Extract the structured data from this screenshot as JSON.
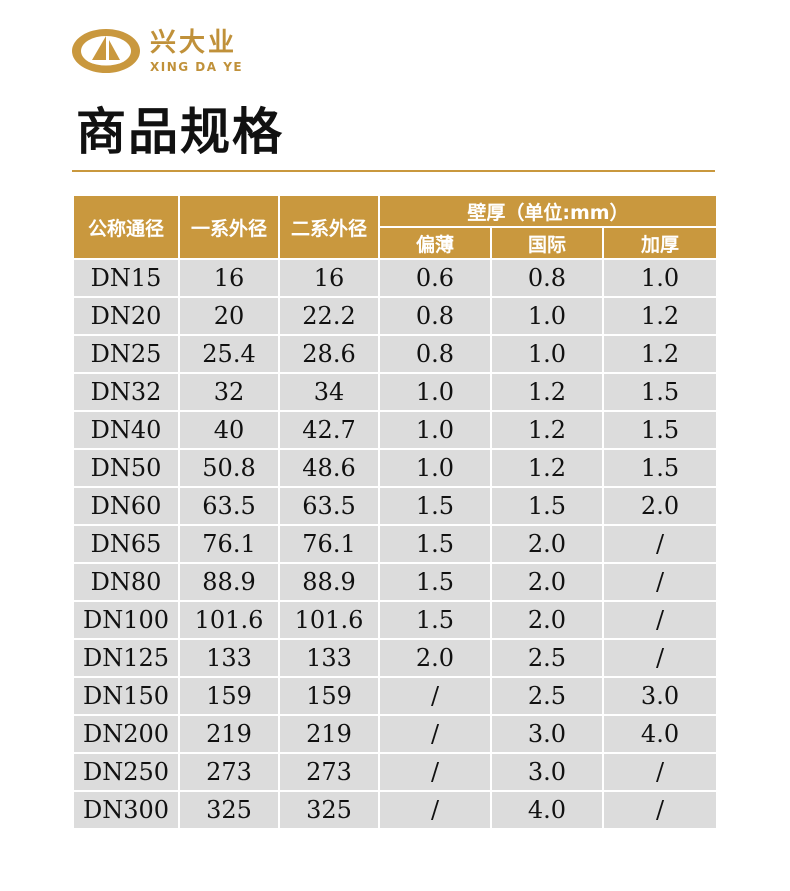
{
  "logo": {
    "name": "兴大业",
    "pinyin": "XING DA YE"
  },
  "title": "商品规格",
  "table": {
    "header": {
      "nominal": "公称通径",
      "series1": "一系外径",
      "series2": "二系外径",
      "thickness": "壁厚（单位:mm）",
      "thin": "偏薄",
      "standard": "国际",
      "thick": "加厚"
    },
    "rows": [
      [
        "DN15",
        "16",
        "16",
        "0.6",
        "0.8",
        "1.0"
      ],
      [
        "DN20",
        "20",
        "22.2",
        "0.8",
        "1.0",
        "1.2"
      ],
      [
        "DN25",
        "25.4",
        "28.6",
        "0.8",
        "1.0",
        "1.2"
      ],
      [
        "DN32",
        "32",
        "34",
        "1.0",
        "1.2",
        "1.5"
      ],
      [
        "DN40",
        "40",
        "42.7",
        "1.0",
        "1.2",
        "1.5"
      ],
      [
        "DN50",
        "50.8",
        "48.6",
        "1.0",
        "1.2",
        "1.5"
      ],
      [
        "DN60",
        "63.5",
        "63.5",
        "1.5",
        "1.5",
        "2.0"
      ],
      [
        "DN65",
        "76.1",
        "76.1",
        "1.5",
        "2.0",
        "/"
      ],
      [
        "DN80",
        "88.9",
        "88.9",
        "1.5",
        "2.0",
        "/"
      ],
      [
        "DN100",
        "101.6",
        "101.6",
        "1.5",
        "2.0",
        "/"
      ],
      [
        "DN125",
        "133",
        "133",
        "2.0",
        "2.5",
        "/"
      ],
      [
        "DN150",
        "159",
        "159",
        "/",
        "2.5",
        "3.0"
      ],
      [
        "DN200",
        "219",
        "219",
        "/",
        "3.0",
        "4.0"
      ],
      [
        "DN250",
        "273",
        "273",
        "/",
        "3.0",
        "/"
      ],
      [
        "DN300",
        "325",
        "325",
        "/",
        "4.0",
        "/"
      ]
    ]
  }
}
